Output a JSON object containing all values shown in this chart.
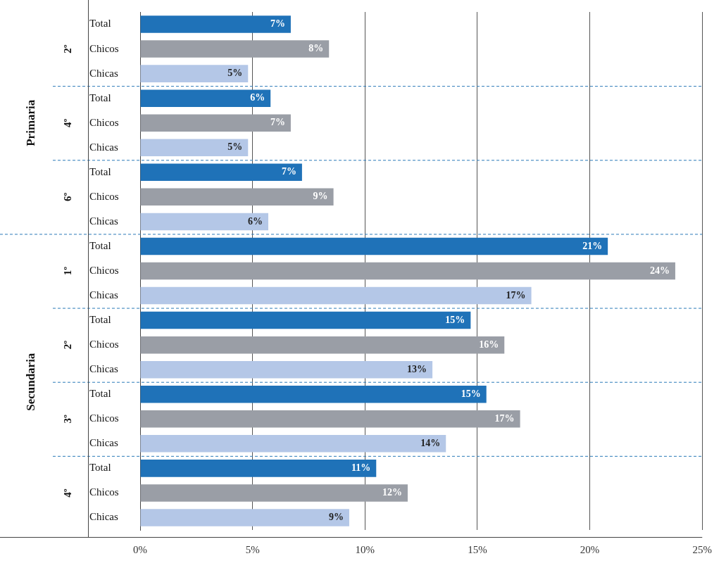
{
  "chart_data": {
    "type": "bar",
    "orientation": "horizontal",
    "categories": [
      "Total",
      "Chicos",
      "Chicas",
      "Total",
      "Chicos",
      "Chicas",
      "Total",
      "Chicos",
      "Chicas",
      "Total",
      "Chicos",
      "Chicas",
      "Total",
      "Chicos",
      "Chicas",
      "Total",
      "Chicos",
      "Chicas",
      "Total",
      "Chicos",
      "Chicas"
    ],
    "values": [
      6.7,
      8.4,
      4.8,
      5.8,
      6.7,
      4.8,
      7.2,
      8.6,
      5.7,
      20.8,
      23.8,
      17.4,
      14.7,
      16.2,
      13.0,
      15.4,
      16.9,
      13.6,
      10.5,
      11.9,
      9.3
    ],
    "value_labels": [
      "7%",
      "8%",
      "5%",
      "6%",
      "7%",
      "5%",
      "7%",
      "9%",
      "6%",
      "21%",
      "24%",
      "17%",
      "15%",
      "16%",
      "13%",
      "15%",
      "17%",
      "14%",
      "11%",
      "12%",
      "9%"
    ],
    "colors": [
      "#1f72b8",
      "#9a9ea6",
      "#b4c7e7",
      "#1f72b8",
      "#9a9ea6",
      "#b4c7e7",
      "#1f72b8",
      "#9a9ea6",
      "#b4c7e7",
      "#1f72b8",
      "#9a9ea6",
      "#b4c7e7",
      "#1f72b8",
      "#9a9ea6",
      "#b4c7e7",
      "#1f72b8",
      "#9a9ea6",
      "#b4c7e7",
      "#1f72b8",
      "#9a9ea6",
      "#b4c7e7"
    ],
    "xlim": [
      0,
      25
    ],
    "xticks": [
      {
        "value": 0,
        "label": "0%"
      },
      {
        "value": 5,
        "label": "5%"
      },
      {
        "value": 10,
        "label": "10%"
      },
      {
        "value": 15,
        "label": "15%"
      },
      {
        "value": 20,
        "label": "20%"
      },
      {
        "value": 25,
        "label": "25%"
      }
    ],
    "grid": "x",
    "legend": false,
    "annotations": [
      "Primaria",
      "2º",
      "4º",
      "6º",
      "Secundaria",
      "1º",
      "2º",
      "3º",
      "4º"
    ]
  }
}
